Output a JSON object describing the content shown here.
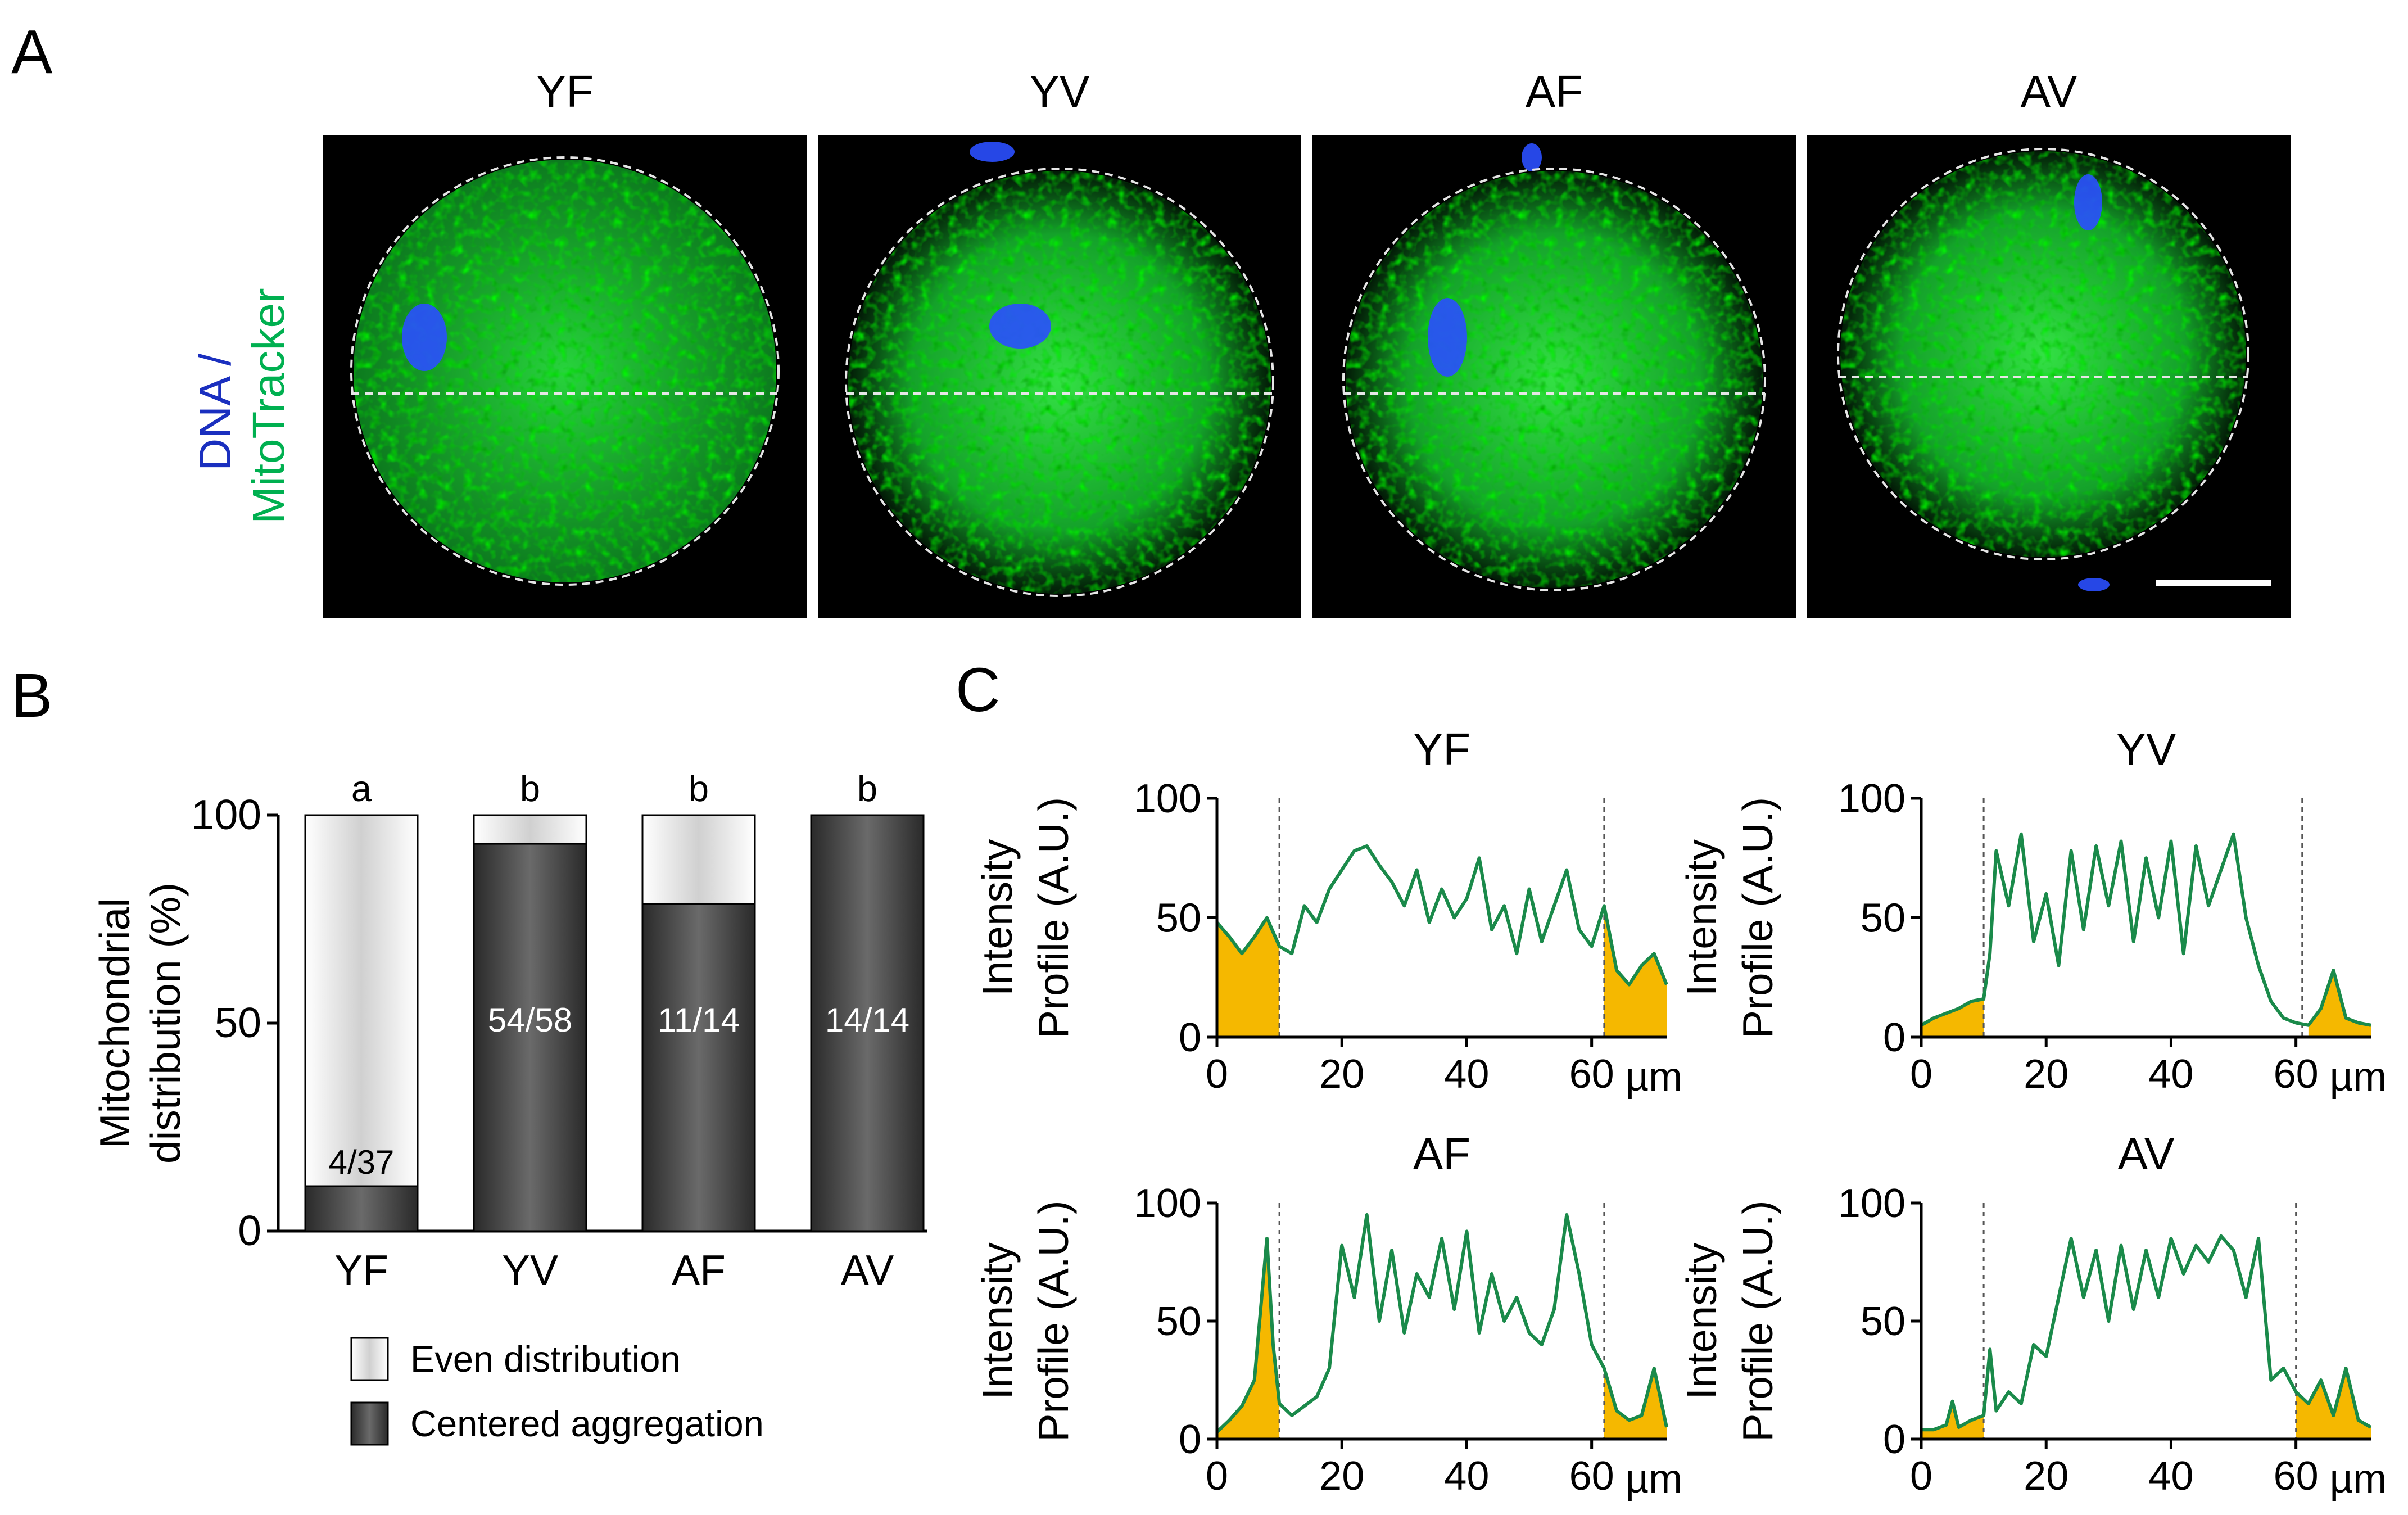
{
  "panel_letters": {
    "a": "A",
    "b": "B",
    "c": "C"
  },
  "micrographs": {
    "groups": [
      "YF",
      "YV",
      "AF",
      "AV"
    ],
    "stain_label_dna": "DNA /",
    "stain_label_mito": "MitoTracker",
    "colors": {
      "dna": "#1a2fbf",
      "mito": "#00b050",
      "background": "#000000"
    }
  },
  "chart_data": [
    {
      "type": "bar",
      "stacked": true,
      "categories": [
        "YF",
        "YV",
        "AF",
        "AV"
      ],
      "series": [
        {
          "name": "Centered aggregation",
          "values": [
            10.8,
            93.1,
            78.6,
            100
          ],
          "color": "#3a3a3a"
        },
        {
          "name": "Even distribution",
          "values": [
            89.2,
            6.9,
            21.4,
            0
          ],
          "color": "#e8e8e8"
        }
      ],
      "bar_labels": [
        "4/37",
        "54/58",
        "11/14",
        "14/14"
      ],
      "significance": [
        "a",
        "b",
        "b",
        "b"
      ],
      "ylabel_line1": "Mitochondrial",
      "ylabel_line2": "distribution (%)",
      "ylim": [
        0,
        100
      ],
      "yticks": [
        "0",
        "50",
        "100"
      ],
      "legend": [
        "Even distribution",
        "Centered aggregation"
      ]
    },
    {
      "type": "area",
      "panels": [
        {
          "title": "YF",
          "boundaries": [
            10,
            62
          ],
          "x": [
            0,
            2,
            4,
            6,
            8,
            10,
            12,
            14,
            16,
            18,
            20,
            22,
            24,
            26,
            28,
            30,
            32,
            34,
            36,
            38,
            40,
            42,
            44,
            46,
            48,
            50,
            52,
            54,
            56,
            58,
            60,
            62,
            64,
            66,
            68,
            70,
            72
          ],
          "y": [
            48,
            42,
            35,
            42,
            50,
            38,
            35,
            55,
            48,
            62,
            70,
            78,
            80,
            72,
            65,
            55,
            70,
            48,
            62,
            50,
            58,
            75,
            45,
            55,
            35,
            62,
            40,
            55,
            70,
            45,
            38,
            55,
            28,
            22,
            30,
            35,
            22
          ]
        },
        {
          "title": "YV",
          "boundaries": [
            10,
            61
          ],
          "x": [
            0,
            2,
            4,
            6,
            8,
            10,
            11,
            12,
            14,
            16,
            18,
            20,
            22,
            24,
            26,
            28,
            30,
            32,
            34,
            36,
            38,
            40,
            42,
            44,
            46,
            48,
            50,
            52,
            54,
            56,
            58,
            60,
            62,
            64,
            66,
            68,
            70,
            72
          ],
          "y": [
            5,
            8,
            10,
            12,
            15,
            16,
            35,
            78,
            55,
            85,
            40,
            60,
            30,
            78,
            45,
            80,
            55,
            82,
            40,
            75,
            50,
            82,
            35,
            80,
            55,
            70,
            85,
            50,
            30,
            15,
            8,
            6,
            5,
            12,
            28,
            8,
            6,
            5
          ]
        },
        {
          "title": "AF",
          "boundaries": [
            10,
            62
          ],
          "x": [
            0,
            2,
            4,
            6,
            7,
            8,
            9,
            10,
            12,
            14,
            16,
            18,
            20,
            22,
            24,
            26,
            28,
            30,
            32,
            34,
            36,
            38,
            40,
            42,
            44,
            46,
            48,
            50,
            52,
            54,
            56,
            58,
            60,
            62,
            64,
            66,
            68,
            70,
            72
          ],
          "y": [
            3,
            8,
            14,
            25,
            55,
            85,
            40,
            15,
            10,
            14,
            18,
            30,
            82,
            60,
            95,
            50,
            80,
            45,
            70,
            60,
            85,
            55,
            88,
            45,
            70,
            50,
            60,
            45,
            40,
            55,
            95,
            70,
            40,
            30,
            12,
            8,
            10,
            30,
            5
          ]
        },
        {
          "title": "AV",
          "boundaries": [
            10,
            60
          ],
          "x": [
            0,
            2,
            4,
            5,
            6,
            8,
            10,
            11,
            12,
            14,
            16,
            18,
            20,
            22,
            24,
            26,
            28,
            30,
            32,
            34,
            36,
            38,
            40,
            42,
            44,
            46,
            48,
            50,
            52,
            54,
            56,
            58,
            60,
            62,
            64,
            66,
            68,
            70,
            72
          ],
          "y": [
            4,
            4,
            6,
            16,
            5,
            8,
            10,
            38,
            12,
            20,
            15,
            40,
            35,
            60,
            85,
            60,
            80,
            50,
            82,
            55,
            80,
            60,
            85,
            70,
            82,
            75,
            86,
            80,
            60,
            85,
            25,
            30,
            20,
            15,
            25,
            10,
            30,
            8,
            5
          ]
        }
      ],
      "ylabel_line1": "Intensity",
      "ylabel_line2": "Profile (A.U.)",
      "xlim": [
        0,
        72
      ],
      "ylim": [
        0,
        100
      ],
      "xticks": [
        0,
        20,
        40,
        60
      ],
      "yticks": [
        0,
        50,
        100
      ],
      "xunit": "µm",
      "line_color": "#1a8a4a",
      "fill_color": "#f5b800"
    }
  ]
}
